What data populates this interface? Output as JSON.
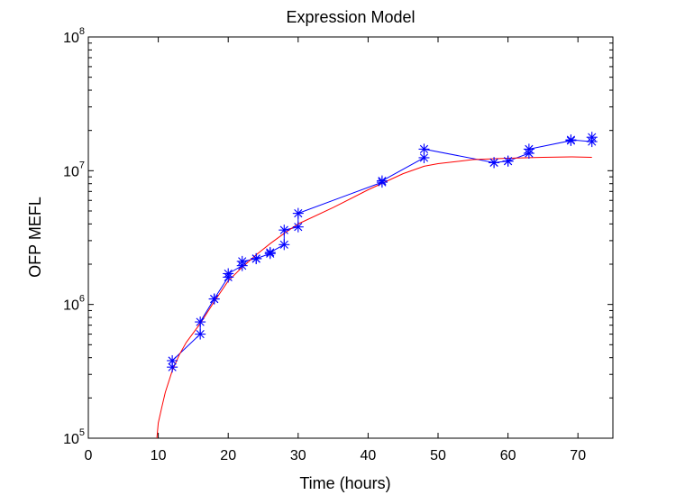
{
  "chart_data": {
    "type": "line",
    "title": "Expression Model",
    "xlabel": "Time (hours)",
    "ylabel": "OFP MEFL",
    "xlim": [
      0,
      75
    ],
    "ylim": [
      100000,
      100000000
    ],
    "yscale": "log",
    "grid": false,
    "x_ticks": [
      "0",
      "10",
      "20",
      "30",
      "40",
      "50",
      "60",
      "70"
    ],
    "y_ticks": [
      {
        "base": "10",
        "exp": "5"
      },
      {
        "base": "10",
        "exp": "6"
      },
      {
        "base": "10",
        "exp": "7"
      },
      {
        "base": "10",
        "exp": "8"
      }
    ],
    "series": [
      {
        "marker": "asterisk",
        "color": "#0000ff",
        "points": [
          [
            12,
            340000
          ],
          [
            12,
            380000
          ],
          [
            16,
            600000
          ],
          [
            16,
            740000
          ],
          [
            18,
            1100000
          ],
          [
            18,
            1100000
          ],
          [
            20,
            1600000
          ],
          [
            20,
            1700000
          ],
          [
            22,
            1950000
          ],
          [
            22,
            2100000
          ],
          [
            24,
            2200000
          ],
          [
            24,
            2200000
          ],
          [
            26,
            2400000
          ],
          [
            26,
            2450000
          ],
          [
            28,
            2800000
          ],
          [
            28,
            3600000
          ],
          [
            30,
            3800000
          ],
          [
            30,
            4800000
          ],
          [
            42,
            8200000
          ],
          [
            42,
            8400000
          ],
          [
            48,
            12500000
          ],
          [
            48,
            14500000
          ],
          [
            58,
            11500000
          ],
          [
            58,
            11500000
          ],
          [
            60,
            11800000
          ],
          [
            60,
            11800000
          ],
          [
            63,
            13500000
          ],
          [
            63,
            14500000
          ],
          [
            69,
            16800000
          ],
          [
            69,
            17000000
          ],
          [
            72,
            16500000
          ],
          [
            72,
            17800000
          ]
        ]
      },
      {
        "marker": "none",
        "color": "#ff0000",
        "points": [
          [
            9.8,
            100000
          ],
          [
            10,
            130000
          ],
          [
            10.5,
            170000
          ],
          [
            11,
            220000
          ],
          [
            12,
            320000
          ],
          [
            13,
            420000
          ],
          [
            14,
            520000
          ],
          [
            16,
            720000
          ],
          [
            18,
            1050000
          ],
          [
            20,
            1500000
          ],
          [
            22,
            1900000
          ],
          [
            24,
            2350000
          ],
          [
            26,
            2850000
          ],
          [
            28,
            3400000
          ],
          [
            30,
            4000000
          ],
          [
            35,
            5300000
          ],
          [
            40,
            7200000
          ],
          [
            45,
            9500000
          ],
          [
            48,
            10800000
          ],
          [
            50,
            11300000
          ],
          [
            55,
            12100000
          ],
          [
            60,
            12400000
          ],
          [
            65,
            12600000
          ],
          [
            69,
            12700000
          ],
          [
            72,
            12600000
          ]
        ]
      }
    ]
  }
}
